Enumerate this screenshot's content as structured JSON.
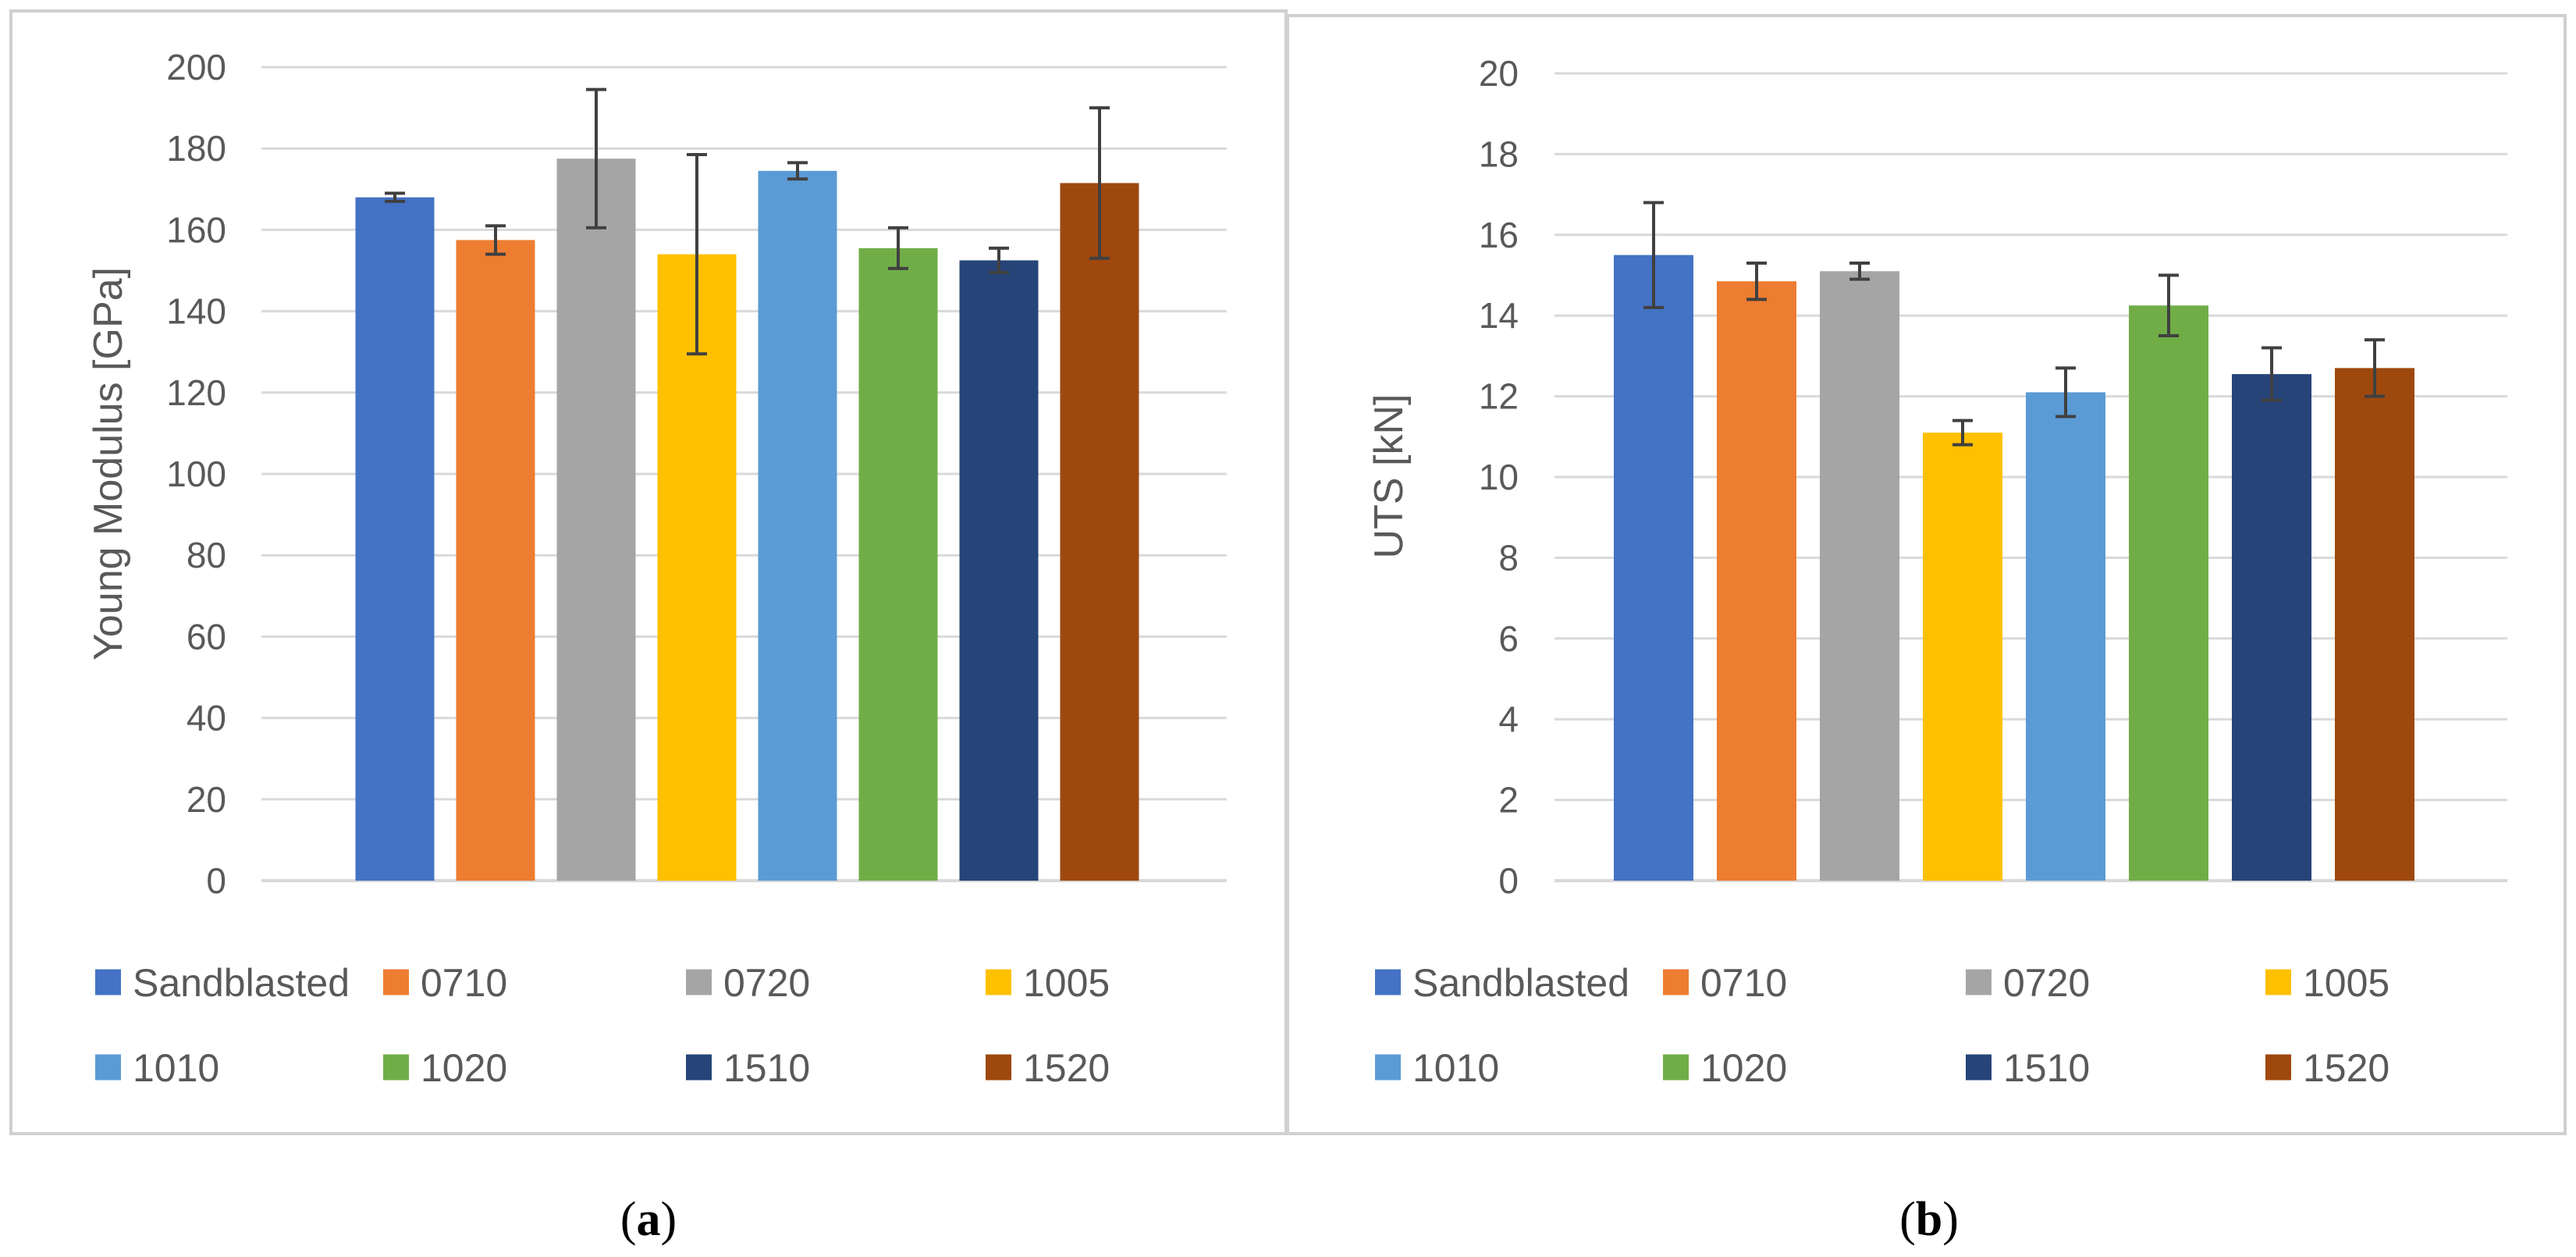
{
  "colors": {
    "grid": "#d9d9d9",
    "frame": "#d0d0d0",
    "error_bar": "#404040",
    "series": [
      "#4472c4",
      "#ed7d31",
      "#a5a5a5",
      "#ffc000",
      "#5b9bd5",
      "#70ad47",
      "#264478",
      "#9e480e"
    ]
  },
  "chart_data": [
    {
      "type": "bar",
      "panel": "a",
      "caption_label": "a",
      "title": "",
      "xlabel": "",
      "ylabel": "Young Modulus [GPa]",
      "ylim": [
        0,
        200
      ],
      "yticks": [
        "0",
        "20",
        "40",
        "60",
        "80",
        "100",
        "120",
        "140",
        "160",
        "180",
        "200"
      ],
      "grid": true,
      "legend_position": "bottom",
      "series": [
        {
          "name": "Sandblasted",
          "value": 168,
          "error": 1
        },
        {
          "name": "0710",
          "value": 157.5,
          "error": 3.5
        },
        {
          "name": "0720",
          "value": 177.5,
          "error": 17
        },
        {
          "name": "1005",
          "value": 154,
          "error": 24.5
        },
        {
          "name": "1010",
          "value": 174.5,
          "error": 2
        },
        {
          "name": "1020",
          "value": 155.5,
          "error": 5
        },
        {
          "name": "1510",
          "value": 152.5,
          "error": 3
        },
        {
          "name": "1520",
          "value": 171.5,
          "error": 18.5
        }
      ]
    },
    {
      "type": "bar",
      "panel": "b",
      "caption_label": "b",
      "title": "",
      "xlabel": "",
      "ylabel": "UTS [kN]",
      "ylim": [
        0,
        20
      ],
      "yticks": [
        "0",
        "2",
        "4",
        "6",
        "8",
        "10",
        "12",
        "14",
        "16",
        "18",
        "20"
      ],
      "grid": true,
      "legend_position": "bottom",
      "series": [
        {
          "name": "Sandblasted",
          "value": 15.5,
          "error": 1.3
        },
        {
          "name": "0710",
          "value": 14.85,
          "error": 0.45
        },
        {
          "name": "0720",
          "value": 15.1,
          "error": 0.2
        },
        {
          "name": "1005",
          "value": 11.1,
          "error": 0.3
        },
        {
          "name": "1010",
          "value": 12.1,
          "error": 0.6
        },
        {
          "name": "1020",
          "value": 14.25,
          "error": 0.75
        },
        {
          "name": "1510",
          "value": 12.55,
          "error": 0.65
        },
        {
          "name": "1520",
          "value": 12.7,
          "error": 0.7
        }
      ]
    }
  ]
}
